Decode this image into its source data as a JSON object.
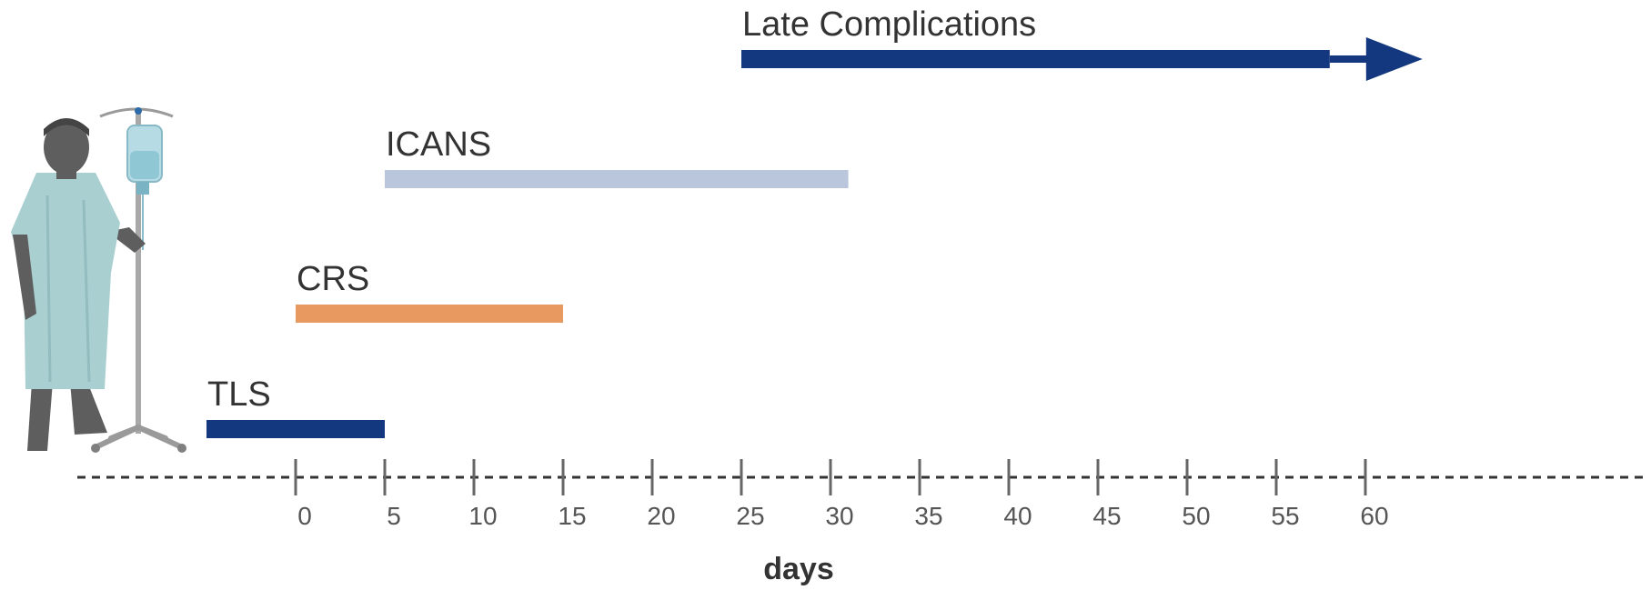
{
  "chart_data": {
    "type": "timeline",
    "xlabel": "days",
    "ticks": [
      0,
      5,
      10,
      15,
      20,
      25,
      30,
      35,
      40,
      45,
      50,
      55,
      60
    ],
    "xlim": [
      -12,
      72
    ],
    "series": [
      {
        "name": "TLS",
        "start": -5,
        "end": 5,
        "color": "#14387f",
        "arrow": false
      },
      {
        "name": "CRS",
        "start": 0,
        "end": 15,
        "color": "#e8995f",
        "arrow": false
      },
      {
        "name": "ICANS",
        "start": 5,
        "end": 31,
        "color": "#b9c6dc",
        "arrow": false
      },
      {
        "name": "Late Complications",
        "start": 25,
        "end": 58,
        "color": "#14387f",
        "arrow": true
      }
    ]
  },
  "illustration": {
    "icon": "patient-with-iv-pole-icon",
    "gown_color": "#a9cfd1",
    "skin_color": "#5e5e5e"
  }
}
